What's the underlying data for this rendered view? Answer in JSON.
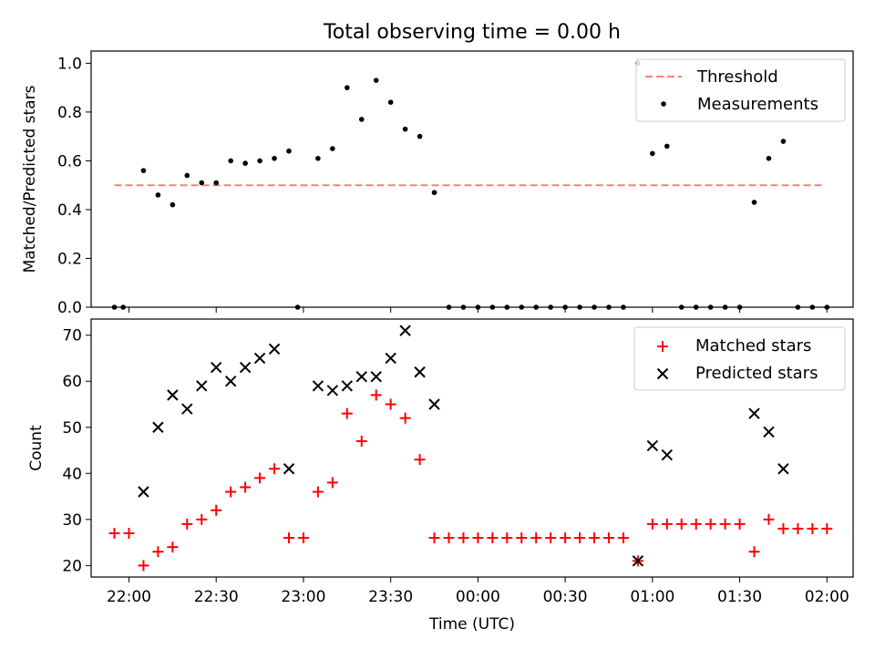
{
  "title": "Total observing time = 0.00 h",
  "colors": {
    "threshold": "#ff7f7f",
    "measurement": "#000000",
    "matched": "#ff0000",
    "predicted": "#000000"
  },
  "chart_data": [
    {
      "type": "scatter",
      "ylabel": "Matched/Predicted stars",
      "xlim": [
        "21:47",
        "02:09"
      ],
      "ylim": [
        0,
        1.05
      ],
      "yticks": [
        "0.0",
        "0.2",
        "0.4",
        "0.6",
        "0.8",
        "1.0"
      ],
      "legend": "top-right",
      "threshold": {
        "name": "Threshold",
        "y": 0.5,
        "x": [
          "21:55",
          "01:59"
        ]
      },
      "series": [
        {
          "name": "Measurements",
          "x": [
            "21:55",
            "21:58",
            "22:05",
            "22:10",
            "22:15",
            "22:20",
            "22:25",
            "22:30",
            "22:35",
            "22:40",
            "22:45",
            "22:50",
            "22:55",
            "22:58",
            "23:05",
            "23:10",
            "23:15",
            "23:20",
            "23:25",
            "23:30",
            "23:35",
            "23:40",
            "23:45",
            "23:50",
            "23:55",
            "00:00",
            "00:05",
            "00:10",
            "00:15",
            "00:20",
            "00:25",
            "00:30",
            "00:35",
            "00:40",
            "00:45",
            "00:50",
            "00:55",
            "01:00",
            "01:05",
            "01:10",
            "01:15",
            "01:20",
            "01:25",
            "01:30",
            "01:35",
            "01:40",
            "01:45",
            "01:50",
            "01:55",
            "02:00"
          ],
          "y": [
            0,
            0,
            0.56,
            0.46,
            0.42,
            0.54,
            0.51,
            0.51,
            0.6,
            0.59,
            0.6,
            0.61,
            0.64,
            0,
            0.61,
            0.65,
            0.9,
            0.77,
            0.93,
            0.84,
            0.73,
            0.7,
            0.47,
            0,
            0,
            0,
            0,
            0,
            0,
            0,
            0,
            0,
            0,
            0,
            0,
            0,
            1.0,
            0.63,
            0.66,
            0,
            0,
            0,
            0,
            0,
            0.43,
            0.61,
            0.68,
            0,
            0,
            0
          ]
        }
      ]
    },
    {
      "type": "scatter",
      "xlabel": "Time (UTC)",
      "ylabel": "Count",
      "xlim": [
        "21:47",
        "02:09"
      ],
      "ylim": [
        17.5,
        73.5
      ],
      "yticks": [
        "20",
        "30",
        "40",
        "50",
        "60",
        "70"
      ],
      "xticks": [
        "22:00",
        "22:30",
        "23:00",
        "23:30",
        "00:00",
        "00:30",
        "01:00",
        "01:30",
        "02:00"
      ],
      "legend": "top-right",
      "series": [
        {
          "name": "Matched stars",
          "marker": "+",
          "x": [
            "21:55",
            "22:00",
            "22:05",
            "22:10",
            "22:15",
            "22:20",
            "22:25",
            "22:30",
            "22:35",
            "22:40",
            "22:45",
            "22:50",
            "22:55",
            "23:00",
            "23:05",
            "23:10",
            "23:15",
            "23:20",
            "23:25",
            "23:30",
            "23:35",
            "23:40",
            "23:45",
            "23:50",
            "23:55",
            "00:00",
            "00:05",
            "00:10",
            "00:15",
            "00:20",
            "00:25",
            "00:30",
            "00:35",
            "00:40",
            "00:45",
            "00:50",
            "00:55",
            "01:00",
            "01:05",
            "01:10",
            "01:15",
            "01:20",
            "01:25",
            "01:30",
            "01:35",
            "01:40",
            "01:45",
            "01:50",
            "01:55",
            "02:00"
          ],
          "y": [
            27,
            27,
            20,
            23,
            24,
            29,
            30,
            32,
            36,
            37,
            39,
            41,
            26,
            26,
            36,
            38,
            53,
            47,
            57,
            55,
            52,
            43,
            26,
            26,
            26,
            26,
            26,
            26,
            26,
            26,
            26,
            26,
            26,
            26,
            26,
            26,
            21,
            29,
            29,
            29,
            29,
            29,
            29,
            29,
            23,
            30,
            28,
            28,
            28,
            28
          ]
        },
        {
          "name": "Predicted stars",
          "marker": "x",
          "x": [
            "22:05",
            "22:10",
            "22:15",
            "22:20",
            "22:25",
            "22:30",
            "22:35",
            "22:40",
            "22:45",
            "22:50",
            "22:55",
            "23:05",
            "23:10",
            "23:15",
            "23:20",
            "23:25",
            "23:30",
            "23:35",
            "23:40",
            "23:45",
            "00:55",
            "01:00",
            "01:05",
            "01:35",
            "01:40",
            "01:45"
          ],
          "y": [
            36,
            50,
            57,
            54,
            59,
            63,
            60,
            63,
            65,
            67,
            41,
            59,
            58,
            59,
            61,
            61,
            65,
            71,
            62,
            55,
            21,
            46,
            44,
            53,
            49,
            41
          ]
        }
      ]
    }
  ]
}
